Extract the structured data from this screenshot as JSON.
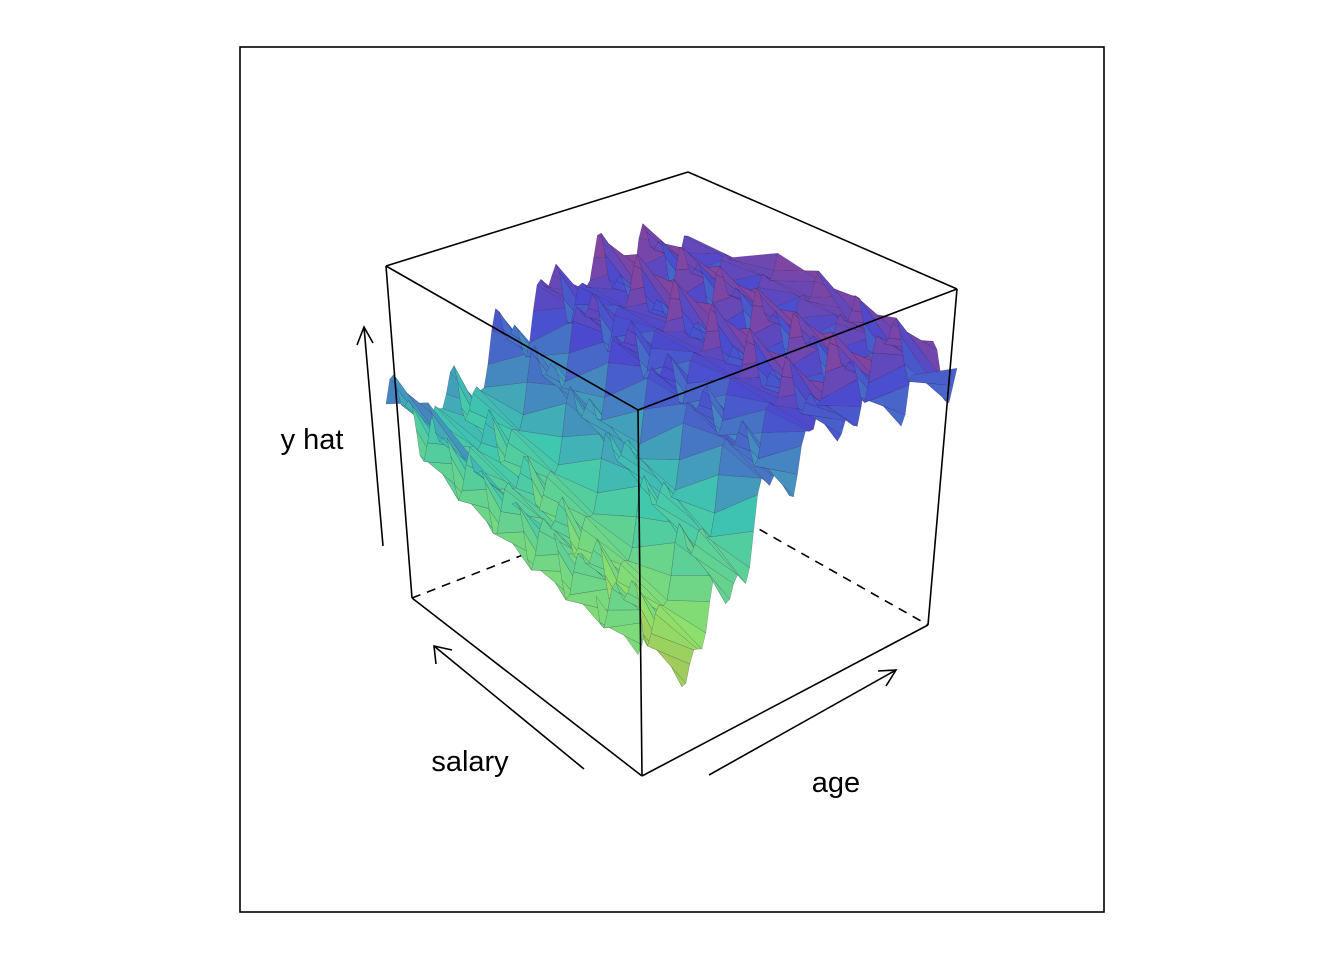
{
  "chart_data": {
    "type": "surface3d",
    "title": "",
    "axes": {
      "x": {
        "label": "age",
        "direction": "arrow"
      },
      "y": {
        "label": "salary",
        "direction": "arrow"
      },
      "z": {
        "label": "y hat",
        "direction": "arrow"
      }
    },
    "color_scale": {
      "low": "#c9a13a",
      "mid_low": "#8ee06a",
      "mid": "#3fc7b0",
      "mid_high": "#4a4ad0",
      "high": "#c0406a"
    },
    "surface_profile": {
      "salary_levels": 6,
      "age_samples": 90,
      "note_visible": false
    },
    "box": true,
    "hidden_edges_dashed": true
  }
}
